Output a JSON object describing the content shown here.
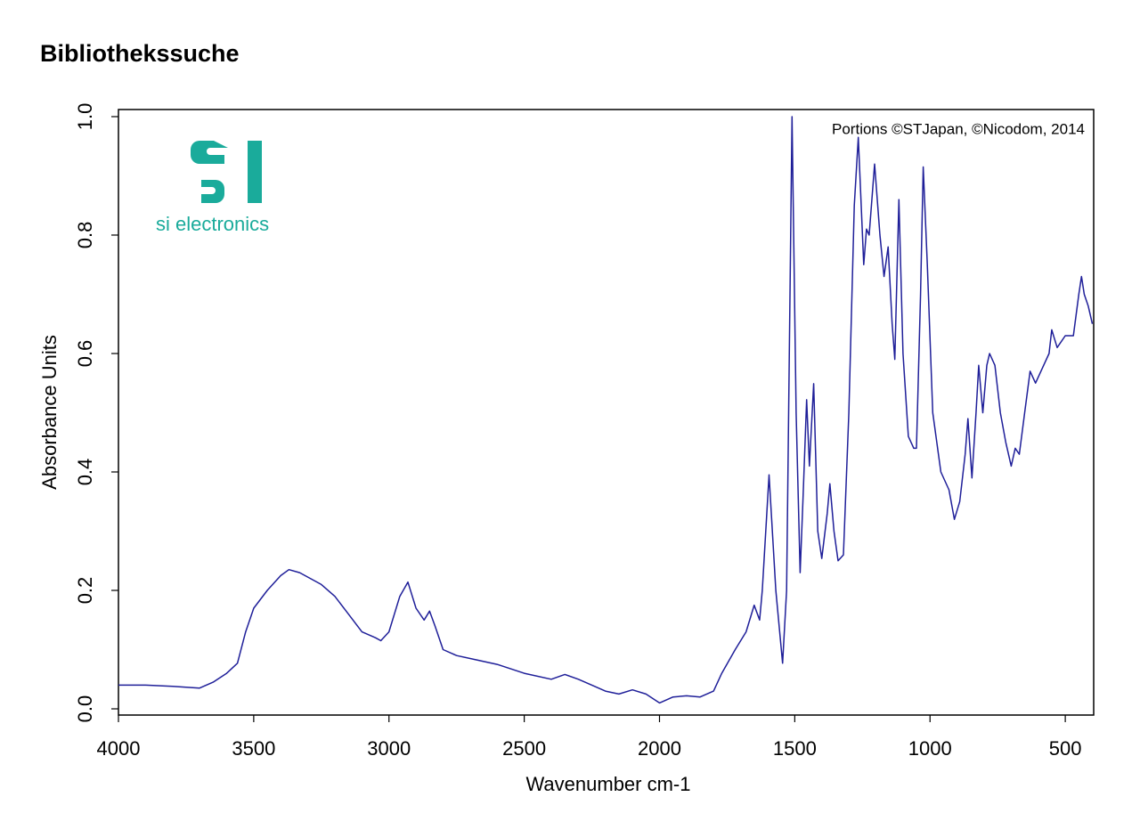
{
  "chart_data": {
    "type": "line",
    "title": "Bibliothekssuche",
    "annotation": "Portions ©STJapan, ©Nicodom, 2014",
    "logo_text": "si electronics",
    "x_label": "Wavenumber cm-1",
    "y_label": "Absorbance Units",
    "color": "#1f1f99",
    "x": [
      4000,
      3900,
      3800,
      3700,
      3650,
      3600,
      3560,
      3530,
      3500,
      3450,
      3400,
      3370,
      3330,
      3250,
      3200,
      3150,
      3100,
      3050,
      3030,
      3000,
      2960,
      2930,
      2900,
      2870,
      2850,
      2830,
      2800,
      2750,
      2700,
      2600,
      2500,
      2400,
      2350,
      2300,
      2250,
      2200,
      2150,
      2100,
      2050,
      2000,
      1950,
      1900,
      1850,
      1800,
      1770,
      1720,
      1680,
      1650,
      1630,
      1620,
      1595,
      1570,
      1545,
      1530,
      1510,
      1495,
      1480,
      1470,
      1456,
      1446,
      1430,
      1415,
      1400,
      1380,
      1370,
      1355,
      1340,
      1320,
      1300,
      1280,
      1265,
      1245,
      1235,
      1225,
      1205,
      1185,
      1170,
      1155,
      1140,
      1130,
      1115,
      1100,
      1080,
      1060,
      1050,
      1035,
      1025,
      1010,
      990,
      960,
      930,
      910,
      890,
      870,
      860,
      845,
      830,
      820,
      805,
      790,
      780,
      760,
      740,
      720,
      700,
      685,
      670,
      650,
      630,
      610,
      580,
      560,
      550,
      530,
      500,
      470,
      450,
      440,
      430,
      415,
      400
    ],
    "values": [
      0.04,
      0.04,
      0.038,
      0.035,
      0.045,
      0.06,
      0.077,
      0.13,
      0.17,
      0.2,
      0.225,
      0.235,
      0.23,
      0.21,
      0.19,
      0.16,
      0.13,
      0.12,
      0.115,
      0.13,
      0.19,
      0.214,
      0.17,
      0.15,
      0.165,
      0.14,
      0.1,
      0.09,
      0.085,
      0.075,
      0.06,
      0.05,
      0.058,
      0.05,
      0.04,
      0.03,
      0.025,
      0.032,
      0.025,
      0.01,
      0.02,
      0.022,
      0.02,
      0.03,
      0.06,
      0.1,
      0.13,
      0.175,
      0.15,
      0.2,
      0.395,
      0.2,
      0.077,
      0.2,
      1.0,
      0.5,
      0.23,
      0.35,
      0.522,
      0.41,
      0.549,
      0.3,
      0.254,
      0.33,
      0.38,
      0.3,
      0.25,
      0.26,
      0.5,
      0.85,
      0.965,
      0.75,
      0.81,
      0.8,
      0.92,
      0.8,
      0.73,
      0.78,
      0.65,
      0.59,
      0.86,
      0.6,
      0.46,
      0.44,
      0.44,
      0.7,
      0.915,
      0.75,
      0.5,
      0.4,
      0.37,
      0.32,
      0.35,
      0.43,
      0.49,
      0.39,
      0.5,
      0.58,
      0.5,
      0.58,
      0.6,
      0.58,
      0.5,
      0.45,
      0.41,
      0.44,
      0.43,
      0.5,
      0.57,
      0.55,
      0.58,
      0.6,
      0.64,
      0.61,
      0.63,
      0.63,
      0.7,
      0.73,
      0.7,
      0.68,
      0.65
    ],
    "xlim": [
      4000,
      395
    ],
    "xticks": [
      4000,
      3500,
      3000,
      2500,
      2000,
      1500,
      1000,
      500
    ],
    "ylim": [
      -0.0105,
      1.012
    ],
    "yticks": [
      {
        "value": 0,
        "label": "0.0"
      },
      0.2,
      0.4,
      0.6,
      0.8,
      {
        "value": 1,
        "label": "1.0"
      }
    ]
  }
}
